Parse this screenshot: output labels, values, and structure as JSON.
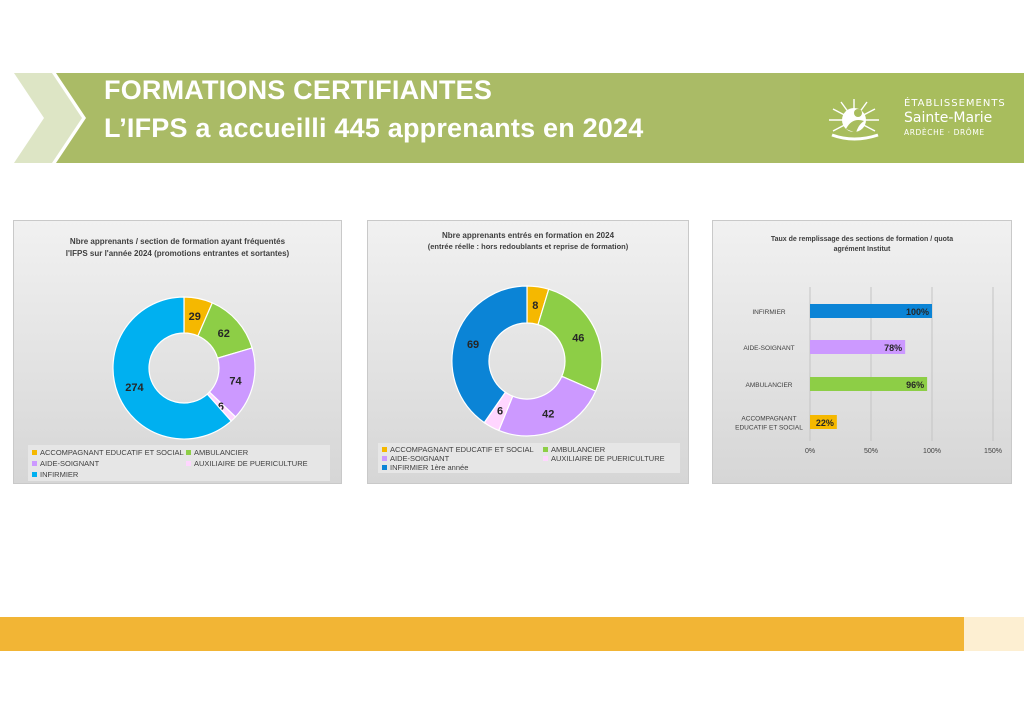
{
  "header": {
    "title_line1": "FORMATIONS CERTIFIANTES",
    "title_line2": "L’IFPS a accueilli 445 apprenants en 2024",
    "band_color": "#aabb66"
  },
  "logo": {
    "line1": "ÉTABLISSEMENTS",
    "line2": "Sainte-Marie",
    "line3": "ARDÈCHE · DRÔME"
  },
  "colors": {
    "accompagnant": "#f5b800",
    "ambulancier": "#8dce46",
    "aide_soignant": "#cc99ff",
    "auxiliaire": "#ffd6ff",
    "infirmier_light": "#00b0f0",
    "infirmier_dark": "#0b84d6",
    "footer": "#f2b535"
  },
  "chart_data": [
    {
      "type": "pie",
      "title_line1": "Nbre apprenants / section de formation ayant fréquentés",
      "title_line2": "l'IFPS sur l'année 2024 (promotions entrantes et sortantes)",
      "categories": [
        "ACCOMPAGNANT EDUCATIF ET SOCIAL",
        "AMBULANCIER",
        "AIDE-SOIGNANT",
        "AUXILIAIRE DE PUERICULTURE",
        "INFIRMIER"
      ],
      "values": [
        29,
        62,
        74,
        6,
        274
      ],
      "data_labels": [
        "29",
        "62",
        "74",
        "6",
        "274"
      ]
    },
    {
      "type": "pie",
      "title_line1": "Nbre apprenants entrés en formation en 2024",
      "subtitle": "(entrée réelle : hors redoublants et reprise de formation)",
      "categories": [
        "ACCOMPAGNANT EDUCATIF ET SOCIAL",
        "AMBULANCIER",
        "AIDE-SOIGNANT",
        "AUXILIAIRE DE PUERICULTURE",
        "INFIRMIER 1ère année"
      ],
      "values": [
        8,
        46,
        42,
        6,
        69
      ],
      "data_labels": [
        "8",
        "46",
        "42",
        "6",
        "69"
      ]
    },
    {
      "type": "bar",
      "orientation": "horizontal",
      "title_line1": "Taux de remplissage des sections de formation / quota",
      "title_line2": "agrément Institut",
      "categories": [
        "INFIRMIER",
        "AIDE-SOIGNANT",
        "AMBULANCIER",
        "ACCOMPAGNANT EDUCATIF ET SOCIAL"
      ],
      "category_lines": [
        [
          "INFIRMIER"
        ],
        [
          "AIDE-SOIGNANT"
        ],
        [
          "AMBULANCIER"
        ],
        [
          "ACCOMPAGNANT",
          "EDUCATIF ET SOCIAL"
        ]
      ],
      "values": [
        100,
        78,
        96,
        22
      ],
      "data_labels": [
        "100%",
        "78%",
        "96%",
        "22%"
      ],
      "xlim": [
        0,
        150
      ],
      "xticks": [
        "0%",
        "50%",
        "100%",
        "150%"
      ],
      "grid": true
    }
  ]
}
